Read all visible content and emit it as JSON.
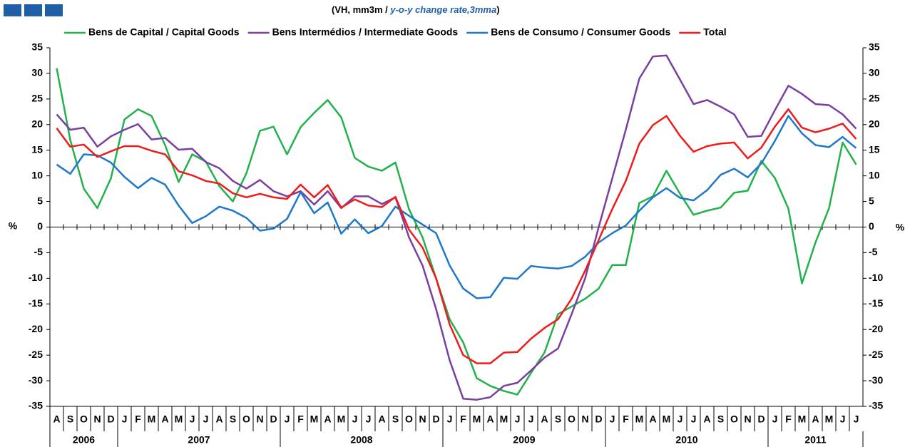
{
  "chart_data": {
    "type": "line",
    "subtitle": [
      "(VH, mm3m / ",
      "y-o-y change rate,3mma",
      ")"
    ],
    "ylabel": "%",
    "y2label": "%",
    "categories": [
      "A",
      "S",
      "O",
      "N",
      "D",
      "J",
      "F",
      "M",
      "A",
      "M",
      "J",
      "J",
      "A",
      "S",
      "O",
      "N",
      "D",
      "J",
      "F",
      "M",
      "A",
      "M",
      "J",
      "J",
      "A",
      "S",
      "O",
      "N",
      "D",
      "J",
      "F",
      "M",
      "A",
      "M",
      "J",
      "J",
      "A",
      "S",
      "O",
      "N",
      "D",
      "J",
      "F",
      "M",
      "A",
      "M",
      "J",
      "J",
      "A",
      "S",
      "O",
      "N",
      "D",
      "J",
      "F",
      "M",
      "A",
      "M",
      "J",
      "J"
    ],
    "year_labels": [
      "2006",
      "2007",
      "2008",
      "2009",
      "2010",
      "2011"
    ],
    "ylim": [
      -35,
      35
    ],
    "yticks": [
      -35,
      -30,
      -25,
      -20,
      -15,
      -10,
      -5,
      0,
      5,
      10,
      15,
      20,
      25,
      30,
      35
    ],
    "y2lim": [
      -35,
      35
    ],
    "y2ticks": [
      -35,
      -30,
      -25,
      -20,
      -15,
      -10,
      -5,
      0,
      5,
      10,
      15,
      20,
      25,
      30,
      35
    ],
    "series": [
      {
        "name": "Bens de Capital / Capital Goods",
        "color": "#22b24c",
        "values": [
          31,
          17,
          7.5,
          3.7,
          9.5,
          21,
          23,
          21.7,
          16,
          8.8,
          14.2,
          12.8,
          8,
          5,
          10.5,
          18.8,
          19.6,
          14.2,
          19.5,
          22.3,
          24.8,
          21.4,
          13.5,
          11.8,
          11,
          12.6,
          3.5,
          -2,
          -10,
          -18,
          -22.5,
          -29.5,
          -31,
          -32,
          -32.7,
          -28.5,
          -24.5,
          -17,
          -15.5,
          -14,
          -12,
          -7.4,
          -7.4,
          4.7,
          6,
          11,
          6.5,
          2.4,
          3.2,
          3.8,
          6.7,
          7.1,
          12.9,
          9.6,
          3.6,
          -11,
          -3,
          3.7,
          16.5,
          12.2
        ]
      },
      {
        "name": "Bens Intermédios / Intermediate Goods",
        "color": "#7b3fa0",
        "values": [
          22,
          19,
          19.4,
          15.7,
          17.7,
          19,
          20.1,
          17.1,
          17.4,
          15.1,
          15.3,
          12.7,
          11.5,
          9,
          7.5,
          9.2,
          7,
          6,
          7,
          4.4,
          7,
          3.7,
          6,
          6,
          4.5,
          5.8,
          -2,
          -7.5,
          -16,
          -26,
          -33.5,
          -33.7,
          -33.2,
          -31,
          -30.4,
          -28,
          -25.5,
          -23.7,
          -17,
          -10,
          0,
          9.5,
          19,
          29,
          33.3,
          33.5,
          28.8,
          24,
          24.8,
          23.5,
          22,
          17.6,
          17.8,
          22.8,
          27.6,
          26,
          24,
          23.8,
          22,
          19.2
        ]
      },
      {
        "name": "Bens de Consumo / Consumer Goods",
        "color": "#1f78c8",
        "values": [
          12.2,
          10.4,
          14.2,
          14,
          12.6,
          9.8,
          7.6,
          9.6,
          8.3,
          4.2,
          0.8,
          2.1,
          4,
          3.2,
          1.8,
          -0.7,
          -0.3,
          1.6,
          6.8,
          2.7,
          4.8,
          -1.3,
          1.5,
          -1.2,
          0.2,
          4,
          2.2,
          0.5,
          -1.2,
          -7.5,
          -12,
          -13.9,
          -13.7,
          -9.9,
          -10.1,
          -7.6,
          -7.9,
          -8.1,
          -7.6,
          -5.8,
          -3,
          -1.2,
          0.3,
          3.2,
          5.8,
          7.6,
          5.7,
          5.2,
          7.2,
          10.2,
          11.4,
          9.7,
          12.4,
          16.8,
          21.7,
          18.3,
          16,
          15.6,
          17.6,
          15.4
        ]
      },
      {
        "name": "Total",
        "color": "#ee1c1c",
        "values": [
          19.3,
          15.7,
          16.1,
          13.7,
          14.8,
          15.8,
          15.8,
          14.9,
          14.2,
          10.9,
          10.1,
          9,
          8.5,
          6.6,
          5.8,
          6.5,
          5.8,
          5.5,
          8.3,
          5.8,
          8.2,
          3.8,
          5.4,
          4.2,
          3.9,
          5.9,
          -0.5,
          -4,
          -10,
          -19,
          -25,
          -26.6,
          -26.6,
          -24.5,
          -24.4,
          -21.8,
          -19.7,
          -18,
          -14,
          -8.5,
          -2.5,
          3.5,
          9,
          16.3,
          19.9,
          21.7,
          17.8,
          14.7,
          15.8,
          16.3,
          16.5,
          13.4,
          15.5,
          19.6,
          23,
          19.4,
          18.5,
          19.2,
          20.2,
          17.2
        ]
      }
    ]
  }
}
